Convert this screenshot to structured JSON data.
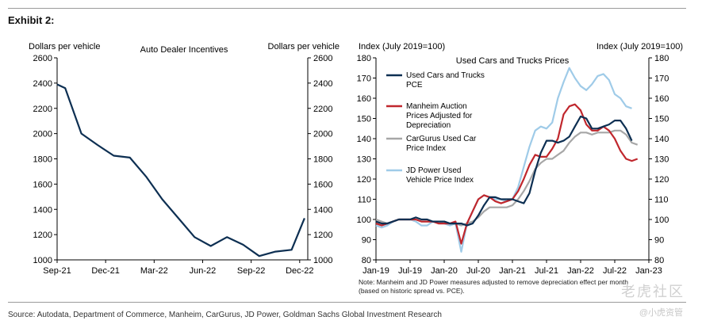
{
  "header": {
    "exhibit": "Exhibit 2:"
  },
  "source": "Source: Autodata, Department of Commerce, Manheim, CarGurus, JD Power, Goldman Sachs Global Investment Research",
  "note": "Note: Manheim and JD Power measures adjusted to remove depreciation effect per month (based on historic spread vs. PCE).",
  "watermark": "老虎社区",
  "watermark2": "@小虎资管",
  "chart_data": [
    {
      "type": "line",
      "title": "Auto Dealer Incentives",
      "ylabel_left": "Dollars per vehicle",
      "ylabel_right": "Dollars per vehicle",
      "ylim": [
        1000,
        2600
      ],
      "yticks": [
        1000,
        1200,
        1400,
        1600,
        1800,
        2000,
        2200,
        2400,
        2600
      ],
      "xticks": [
        {
          "label": "Sep-21",
          "x": 0
        },
        {
          "label": "Dec-21",
          "x": 3
        },
        {
          "label": "Mar-22",
          "x": 6
        },
        {
          "label": "Jun-22",
          "x": 9
        },
        {
          "label": "Sep-22",
          "x": 12
        },
        {
          "label": "Dec-22",
          "x": 15
        }
      ],
      "xlim": [
        0,
        15.5
      ],
      "grid": false,
      "series": [
        {
          "name": "",
          "color": "#0d2f52",
          "x": [
            0,
            0.5,
            1.5,
            2.5,
            3.5,
            4.5,
            5.5,
            6.5,
            7.5,
            8.5,
            9.5,
            10.5,
            11.5,
            12.5,
            13.5,
            14.5,
            15.3
          ],
          "values": [
            2390,
            2360,
            2000,
            1910,
            1825,
            1810,
            1660,
            1480,
            1330,
            1180,
            1110,
            1180,
            1120,
            1030,
            1065,
            1080,
            1330
          ]
        }
      ]
    },
    {
      "type": "line",
      "title": "Used Cars and Trucks Prices",
      "ylabel_left": "Index (July 2019=100)",
      "ylabel_right": "Index (July 2019=100)",
      "ylim": [
        80,
        180
      ],
      "yticks": [
        80,
        90,
        100,
        110,
        120,
        130,
        140,
        150,
        160,
        170,
        180
      ],
      "xticks": [
        {
          "label": "Jan-19",
          "x": 0
        },
        {
          "label": "Jul-19",
          "x": 6
        },
        {
          "label": "Jan-20",
          "x": 12
        },
        {
          "label": "Jul-20",
          "x": 18
        },
        {
          "label": "Jan-21",
          "x": 24
        },
        {
          "label": "Jul-21",
          "x": 30
        },
        {
          "label": "Jan-22",
          "x": 36
        },
        {
          "label": "Jul-22",
          "x": 42
        },
        {
          "label": "Jan-23",
          "x": 48
        }
      ],
      "xlim": [
        0,
        48
      ],
      "grid": false,
      "legend_placement": "left",
      "series": [
        {
          "name": "Used Cars and Trucks PCE",
          "color": "#0d2f52",
          "x": [
            0,
            1,
            2,
            3,
            4,
            5,
            6,
            7,
            8,
            9,
            10,
            11,
            12,
            13,
            14,
            15,
            16,
            17,
            18,
            19,
            20,
            21,
            22,
            23,
            24,
            25,
            26,
            27,
            28,
            29,
            30,
            31,
            32,
            33,
            34,
            35,
            36,
            37,
            38,
            39,
            40,
            41,
            42,
            43,
            44,
            45
          ],
          "values": [
            99,
            98,
            98,
            99,
            100,
            100,
            100,
            101,
            100,
            100,
            99,
            99,
            99,
            98,
            98,
            98,
            97,
            98,
            102,
            107,
            111,
            111,
            110,
            110,
            110,
            109,
            108,
            113,
            124,
            133,
            139,
            139,
            138,
            139,
            141,
            146,
            151,
            150,
            145,
            145,
            146,
            147,
            149,
            149,
            145,
            139
          ]
        },
        {
          "name": "Manheim Auction Prices Adjusted for Depreciation",
          "color": "#c0272d",
          "x": [
            0,
            1,
            2,
            3,
            4,
            5,
            6,
            7,
            8,
            9,
            10,
            11,
            12,
            13,
            14,
            15,
            16,
            17,
            18,
            19,
            20,
            21,
            22,
            23,
            24,
            25,
            26,
            27,
            28,
            29,
            30,
            31,
            32,
            33,
            34,
            35,
            36,
            37,
            38,
            39,
            40,
            41,
            42,
            43,
            44,
            45,
            46
          ],
          "values": [
            98,
            97,
            98,
            99,
            100,
            100,
            100,
            100,
            99,
            99,
            99,
            98,
            98,
            98,
            99,
            88,
            98,
            104,
            110,
            112,
            111,
            109,
            108,
            109,
            110,
            114,
            120,
            127,
            132,
            131,
            131,
            135,
            140,
            152,
            156,
            157,
            154,
            147,
            144,
            144,
            146,
            144,
            140,
            134,
            130,
            129,
            130
          ]
        },
        {
          "name": "CarGurus Used Car Price Index",
          "color": "#a7a7a7",
          "x": [
            0,
            1,
            2,
            3,
            4,
            5,
            6,
            7,
            8,
            9,
            10,
            11,
            12,
            13,
            14,
            15,
            16,
            17,
            18,
            19,
            20,
            21,
            22,
            23,
            24,
            25,
            26,
            27,
            28,
            29,
            30,
            31,
            32,
            33,
            34,
            35,
            36,
            37,
            38,
            39,
            40,
            41,
            42,
            43,
            44,
            45,
            46
          ],
          "values": [
            100,
            99,
            98,
            99,
            100,
            100,
            100,
            100,
            99,
            99,
            99,
            99,
            99,
            98,
            98,
            97,
            98,
            99,
            101,
            104,
            106,
            106,
            106,
            106,
            107,
            110,
            114,
            119,
            125,
            128,
            130,
            130,
            132,
            134,
            138,
            141,
            143,
            143,
            142,
            143,
            143,
            143,
            144,
            144,
            142,
            138,
            137
          ]
        },
        {
          "name": "JD Power Used Vehicle Price Index",
          "color": "#9fcbe8",
          "x": [
            0,
            1,
            2,
            3,
            4,
            5,
            6,
            7,
            8,
            9,
            10,
            11,
            12,
            13,
            14,
            15,
            16,
            17,
            18,
            19,
            20,
            21,
            22,
            23,
            24,
            25,
            26,
            27,
            28,
            29,
            30,
            31,
            32,
            33,
            34,
            35,
            36,
            37,
            38,
            39,
            40,
            41,
            42,
            43,
            44,
            45
          ],
          "values": [
            97,
            96,
            97,
            99,
            100,
            100,
            100,
            99,
            97,
            97,
            99,
            99,
            98,
            97,
            98,
            84,
            98,
            104,
            110,
            112,
            111,
            110,
            110,
            109,
            110,
            116,
            126,
            136,
            144,
            146,
            145,
            148,
            160,
            168,
            175,
            170,
            166,
            164,
            167,
            171,
            172,
            169,
            162,
            160,
            156,
            155
          ]
        }
      ]
    }
  ]
}
